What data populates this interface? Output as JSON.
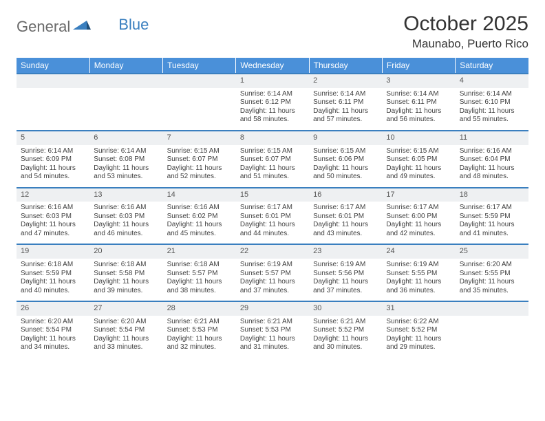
{
  "brand": {
    "part1": "General",
    "part2": "Blue"
  },
  "title": "October 2025",
  "location": "Maunabo, Puerto Rico",
  "dayNames": [
    "Sunday",
    "Monday",
    "Tuesday",
    "Wednesday",
    "Thursday",
    "Friday",
    "Saturday"
  ],
  "colors": {
    "header_bg": "#4a90d9",
    "accent_line": "#3a7fbf",
    "daynum_bg": "#eef0f2",
    "text": "#333333",
    "body_text": "#404040"
  },
  "fonts": {
    "title_pt": 30,
    "location_pt": 17,
    "dayhead_pt": 12,
    "daynum_pt": 11,
    "cell_pt": 10
  },
  "weeks": [
    [
      null,
      null,
      null,
      {
        "n": "1",
        "sunrise": "6:14 AM",
        "sunset": "6:12 PM",
        "daylight": "11 hours and 58 minutes."
      },
      {
        "n": "2",
        "sunrise": "6:14 AM",
        "sunset": "6:11 PM",
        "daylight": "11 hours and 57 minutes."
      },
      {
        "n": "3",
        "sunrise": "6:14 AM",
        "sunset": "6:11 PM",
        "daylight": "11 hours and 56 minutes."
      },
      {
        "n": "4",
        "sunrise": "6:14 AM",
        "sunset": "6:10 PM",
        "daylight": "11 hours and 55 minutes."
      }
    ],
    [
      {
        "n": "5",
        "sunrise": "6:14 AM",
        "sunset": "6:09 PM",
        "daylight": "11 hours and 54 minutes."
      },
      {
        "n": "6",
        "sunrise": "6:14 AM",
        "sunset": "6:08 PM",
        "daylight": "11 hours and 53 minutes."
      },
      {
        "n": "7",
        "sunrise": "6:15 AM",
        "sunset": "6:07 PM",
        "daylight": "11 hours and 52 minutes."
      },
      {
        "n": "8",
        "sunrise": "6:15 AM",
        "sunset": "6:07 PM",
        "daylight": "11 hours and 51 minutes."
      },
      {
        "n": "9",
        "sunrise": "6:15 AM",
        "sunset": "6:06 PM",
        "daylight": "11 hours and 50 minutes."
      },
      {
        "n": "10",
        "sunrise": "6:15 AM",
        "sunset": "6:05 PM",
        "daylight": "11 hours and 49 minutes."
      },
      {
        "n": "11",
        "sunrise": "6:16 AM",
        "sunset": "6:04 PM",
        "daylight": "11 hours and 48 minutes."
      }
    ],
    [
      {
        "n": "12",
        "sunrise": "6:16 AM",
        "sunset": "6:03 PM",
        "daylight": "11 hours and 47 minutes."
      },
      {
        "n": "13",
        "sunrise": "6:16 AM",
        "sunset": "6:03 PM",
        "daylight": "11 hours and 46 minutes."
      },
      {
        "n": "14",
        "sunrise": "6:16 AM",
        "sunset": "6:02 PM",
        "daylight": "11 hours and 45 minutes."
      },
      {
        "n": "15",
        "sunrise": "6:17 AM",
        "sunset": "6:01 PM",
        "daylight": "11 hours and 44 minutes."
      },
      {
        "n": "16",
        "sunrise": "6:17 AM",
        "sunset": "6:01 PM",
        "daylight": "11 hours and 43 minutes."
      },
      {
        "n": "17",
        "sunrise": "6:17 AM",
        "sunset": "6:00 PM",
        "daylight": "11 hours and 42 minutes."
      },
      {
        "n": "18",
        "sunrise": "6:17 AM",
        "sunset": "5:59 PM",
        "daylight": "11 hours and 41 minutes."
      }
    ],
    [
      {
        "n": "19",
        "sunrise": "6:18 AM",
        "sunset": "5:59 PM",
        "daylight": "11 hours and 40 minutes."
      },
      {
        "n": "20",
        "sunrise": "6:18 AM",
        "sunset": "5:58 PM",
        "daylight": "11 hours and 39 minutes."
      },
      {
        "n": "21",
        "sunrise": "6:18 AM",
        "sunset": "5:57 PM",
        "daylight": "11 hours and 38 minutes."
      },
      {
        "n": "22",
        "sunrise": "6:19 AM",
        "sunset": "5:57 PM",
        "daylight": "11 hours and 37 minutes."
      },
      {
        "n": "23",
        "sunrise": "6:19 AM",
        "sunset": "5:56 PM",
        "daylight": "11 hours and 37 minutes."
      },
      {
        "n": "24",
        "sunrise": "6:19 AM",
        "sunset": "5:55 PM",
        "daylight": "11 hours and 36 minutes."
      },
      {
        "n": "25",
        "sunrise": "6:20 AM",
        "sunset": "5:55 PM",
        "daylight": "11 hours and 35 minutes."
      }
    ],
    [
      {
        "n": "26",
        "sunrise": "6:20 AM",
        "sunset": "5:54 PM",
        "daylight": "11 hours and 34 minutes."
      },
      {
        "n": "27",
        "sunrise": "6:20 AM",
        "sunset": "5:54 PM",
        "daylight": "11 hours and 33 minutes."
      },
      {
        "n": "28",
        "sunrise": "6:21 AM",
        "sunset": "5:53 PM",
        "daylight": "11 hours and 32 minutes."
      },
      {
        "n": "29",
        "sunrise": "6:21 AM",
        "sunset": "5:53 PM",
        "daylight": "11 hours and 31 minutes."
      },
      {
        "n": "30",
        "sunrise": "6:21 AM",
        "sunset": "5:52 PM",
        "daylight": "11 hours and 30 minutes."
      },
      {
        "n": "31",
        "sunrise": "6:22 AM",
        "sunset": "5:52 PM",
        "daylight": "11 hours and 29 minutes."
      },
      null
    ]
  ],
  "labels": {
    "sunrise": "Sunrise:",
    "sunset": "Sunset:",
    "daylight": "Daylight:"
  }
}
